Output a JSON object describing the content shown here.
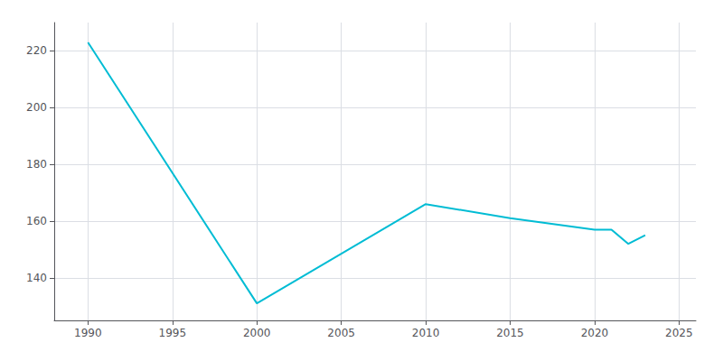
{
  "chart_data": {
    "type": "line",
    "x": [
      1990,
      2000,
      2010,
      2015,
      2020,
      2021,
      2022,
      2023
    ],
    "values": [
      223,
      131,
      166,
      161,
      157,
      157,
      152,
      155
    ],
    "color": "#00bcd4",
    "xlim": [
      1988,
      2026
    ],
    "ylim": [
      125,
      230
    ],
    "xticks": [
      1990,
      1995,
      2000,
      2005,
      2010,
      2015,
      2020,
      2025
    ],
    "yticks": [
      140,
      160,
      180,
      200,
      220
    ],
    "grid": true
  }
}
